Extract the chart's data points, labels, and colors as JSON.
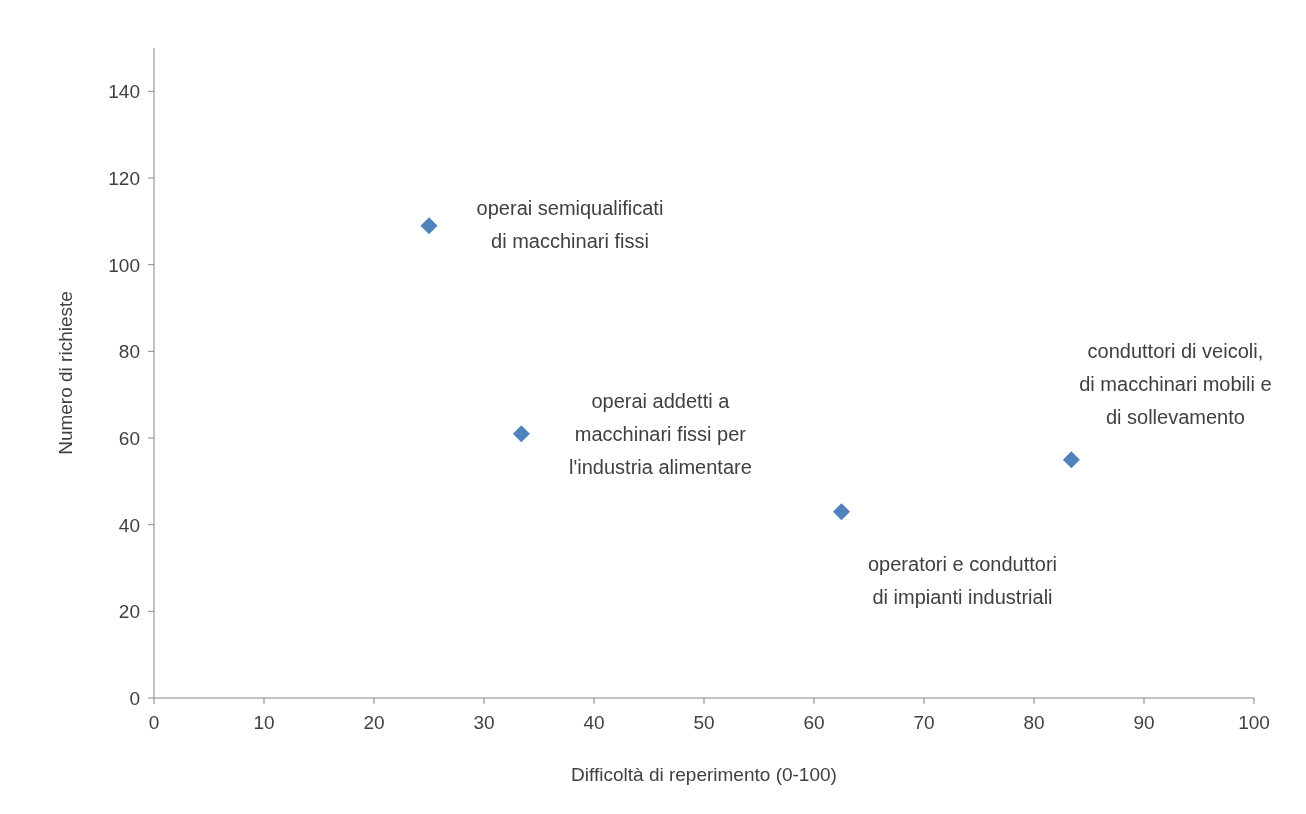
{
  "chart_data": {
    "type": "scatter",
    "xlabel": "Difficoltà di reperimento (0-100)",
    "ylabel": "Numero di richieste",
    "x": [
      25,
      33.4,
      62.5,
      83.4
    ],
    "series": [
      {
        "color": "#4f81bd",
        "values": [
          109,
          61,
          43,
          55
        ]
      }
    ],
    "marker": "diamond",
    "grid": false,
    "xlim": [
      0,
      100
    ],
    "xticks": [
      0,
      10,
      20,
      30,
      40,
      50,
      60,
      70,
      80,
      90,
      100
    ],
    "ylim": [
      0,
      150
    ],
    "yticks": [
      0,
      20,
      40,
      60,
      80,
      100,
      120,
      140
    ],
    "annotations": [
      {
        "text": "operai semiqualificati\ndi macchinari fissi",
        "x": 25,
        "y": 109
      },
      {
        "text": "operai addetti a\nmacchinari fissi per\nl'industria alimentare",
        "x": 33.4,
        "y": 61
      },
      {
        "text": "operatori e conduttori\ndi impianti industriali",
        "x": 62.5,
        "y": 43
      },
      {
        "text": "conduttori di veicoli,\ndi macchinari mobili e\ndi sollevamento",
        "x": 83.4,
        "y": 55
      }
    ]
  }
}
